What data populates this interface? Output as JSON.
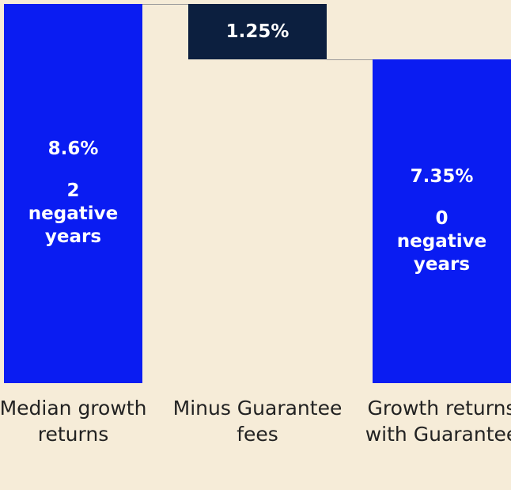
{
  "chart_data": {
    "type": "waterfall",
    "categories": [
      "Median growth returns",
      "Minus Guarantee fees",
      "Growth returns with Guarantee"
    ],
    "measure": [
      "absolute",
      "decrease",
      "total"
    ],
    "values": [
      8.6,
      1.25,
      7.35
    ],
    "value_labels": [
      "8.6%",
      "1.25%",
      "7.35%"
    ],
    "annotations": [
      "2 negative years",
      null,
      "0 negative years"
    ],
    "colors": [
      "#0a1cf2",
      "#0c1f3f",
      "#0a1cf2"
    ],
    "connector_color": "#9a9a9a",
    "background": "#f6ecd8"
  }
}
